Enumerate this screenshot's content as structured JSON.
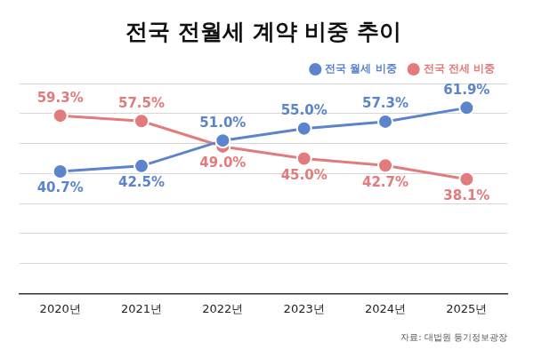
{
  "chart_data": {
    "type": "line",
    "title": "전국 전월세 계약 비중 추이",
    "source": "자료: 대법원 등기정보광장",
    "categories": [
      "2020년",
      "2021년",
      "2022년",
      "2023년",
      "2024년",
      "2025년"
    ],
    "series": [
      {
        "name": "전국 월세 비중",
        "color": "#5b84cc",
        "marker": "circle",
        "line_style": "solid",
        "values": [
          40.7,
          42.5,
          51.0,
          55.0,
          57.3,
          61.9
        ],
        "value_labels": [
          "40.7%",
          "42.5%",
          "51.0%",
          "55.0%",
          "57.3%",
          "61.9%"
        ]
      },
      {
        "name": "전국 전세 비중",
        "color": "#e27b7b",
        "marker": "circle",
        "line_style": "solid",
        "values": [
          59.3,
          57.5,
          49.0,
          45.0,
          42.7,
          38.1
        ],
        "value_labels": [
          "59.3%",
          "57.5%",
          "49.0%",
          "45.0%",
          "42.7%",
          "38.1%"
        ]
      }
    ],
    "ylim": [
      0,
      70
    ],
    "yticks": [
      0,
      10,
      20,
      30,
      40,
      50,
      60,
      70
    ],
    "grid": true,
    "legend": "top-right",
    "data_labels": true,
    "tick_labels": "x"
  }
}
